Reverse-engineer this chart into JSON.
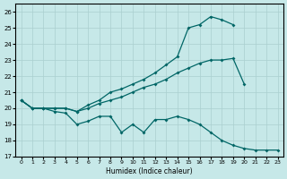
{
  "xlabel": "Humidex (Indice chaleur)",
  "xlim": [
    -0.5,
    23.5
  ],
  "ylim": [
    17,
    26.5
  ],
  "yticks": [
    17,
    18,
    19,
    20,
    21,
    22,
    23,
    24,
    25,
    26
  ],
  "xticks": [
    0,
    1,
    2,
    3,
    4,
    5,
    6,
    7,
    8,
    9,
    10,
    11,
    12,
    13,
    14,
    15,
    16,
    17,
    18,
    19,
    20,
    21,
    22,
    23
  ],
  "bg_color": "#c6e8e8",
  "grid_color": "#aacfcf",
  "line_color": "#006666",
  "curve1": {
    "x": [
      0,
      1,
      2,
      3,
      4,
      5,
      6,
      7,
      8,
      9,
      10,
      11,
      12,
      13,
      14,
      15,
      16,
      17,
      18,
      19
    ],
    "y": [
      20.5,
      20.0,
      20.0,
      20.0,
      20.0,
      19.8,
      20.2,
      20.5,
      21.0,
      21.2,
      21.5,
      21.8,
      22.2,
      22.7,
      23.2,
      25.0,
      25.2,
      25.7,
      25.5,
      25.2
    ]
  },
  "curve2": {
    "x": [
      0,
      1,
      2,
      3,
      4,
      5,
      6,
      7,
      8,
      9,
      10,
      11,
      12,
      13,
      14,
      15,
      16,
      17,
      18,
      19,
      20
    ],
    "y": [
      20.5,
      20.0,
      20.0,
      20.0,
      20.0,
      19.8,
      20.0,
      20.3,
      20.5,
      20.7,
      21.0,
      21.3,
      21.5,
      21.8,
      22.2,
      22.5,
      22.8,
      23.0,
      23.0,
      23.1,
      21.5
    ]
  },
  "curve3": {
    "x": [
      0,
      1,
      2,
      3,
      4,
      5,
      6,
      7,
      8,
      9,
      10,
      11,
      12,
      13,
      14,
      15,
      16,
      17,
      18,
      19,
      20,
      21,
      22,
      23
    ],
    "y": [
      20.5,
      20.0,
      20.0,
      19.8,
      19.7,
      19.0,
      19.2,
      19.5,
      19.5,
      18.5,
      19.0,
      18.5,
      19.3,
      19.3,
      19.5,
      19.3,
      19.0,
      18.5,
      18.0,
      17.7,
      17.5,
      17.4,
      17.4,
      17.4
    ]
  }
}
